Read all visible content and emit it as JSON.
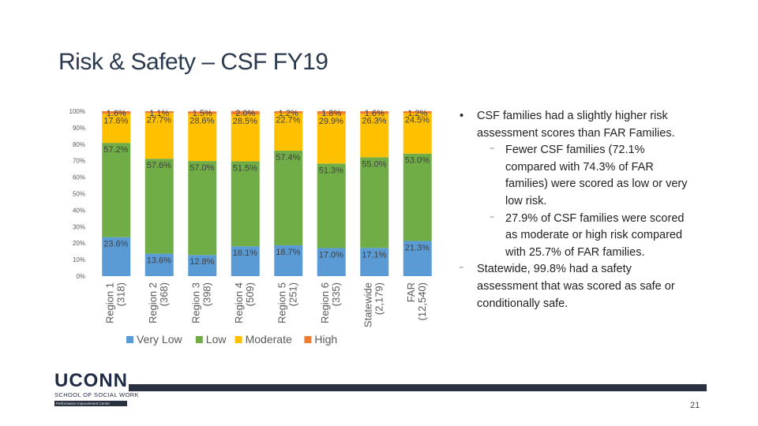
{
  "slide": {
    "title": "Risk & Safety – CSF FY19",
    "page_number": "21"
  },
  "logo": {
    "name": "UCONN",
    "subtitle": "SCHOOL OF SOCIAL WORK",
    "tagline": "Performance Improvement Center"
  },
  "bullets": [
    {
      "level": 1,
      "marker": "•",
      "text": "CSF families had a slightly higher risk assessment scores than FAR Families."
    },
    {
      "level": 2,
      "marker": "⁻",
      "text": "Fewer CSF families (72.1% compared with 74.3% of FAR families) were scored as low or very low risk."
    },
    {
      "level": 2,
      "marker": "⁻",
      "text": "27.9% of CSF families were scored as moderate or high risk compared with 25.7% of FAR families."
    },
    {
      "level": 1,
      "marker": "⁻",
      "text": "Statewide, 99.8% had a safety assessment that was scored as safe or conditionally safe."
    }
  ],
  "chart_data": {
    "type": "bar",
    "stacked": true,
    "percent": true,
    "categories": [
      "Region 1 (318)",
      "Region 2 (368)",
      "Region 3 (398)",
      "Region 4 (509)",
      "Region 5 (251)",
      "Region 6 (335)",
      "Statewide (2,179)",
      "FAR (12,540)"
    ],
    "category_lines": [
      [
        "Region 1",
        "(318)"
      ],
      [
        "Region 2",
        "(368)"
      ],
      [
        "Region 3",
        "(398)"
      ],
      [
        "Region 4",
        "(509)"
      ],
      [
        "Region 5",
        "(251)"
      ],
      [
        "Region 6",
        "(335)"
      ],
      [
        "Statewide",
        "(2,179)"
      ],
      [
        "FAR",
        "(12,540)"
      ]
    ],
    "series": [
      {
        "name": "Very Low",
        "color": "#5b9bd5",
        "values": [
          23.6,
          13.6,
          12.8,
          18.1,
          18.7,
          17.0,
          17.1,
          21.3
        ],
        "labels": [
          "23.6%",
          "13.6%",
          "12.8%",
          "18.1%",
          "18.7%",
          "17.0%",
          "17.1%",
          "21.3%"
        ]
      },
      {
        "name": "Low",
        "color": "#70ad47",
        "values": [
          57.2,
          57.6,
          57.0,
          51.5,
          57.4,
          51.3,
          55.0,
          53.0
        ],
        "labels": [
          "57.2%",
          "57.6%",
          "57.0%",
          "51.5%",
          "57.4%",
          "51.3%",
          "55.0%",
          "53.0%"
        ]
      },
      {
        "name": "Moderate",
        "color": "#ffc000",
        "values": [
          17.6,
          27.7,
          28.6,
          28.5,
          22.7,
          29.9,
          26.3,
          24.5
        ],
        "labels": [
          "17.6%",
          "27.7%",
          "28.6%",
          "28.5%",
          "22.7%",
          "29.9%",
          "26.3%",
          "24.5%"
        ]
      },
      {
        "name": "High",
        "color": "#ed7d31",
        "values": [
          1.6,
          1.1,
          1.5,
          2.0,
          1.2,
          1.8,
          1.6,
          1.2
        ],
        "labels": [
          "1.6%",
          "1.1%",
          "1.5%",
          "2.0%",
          "1.2%",
          "1.8%",
          "1.6%",
          "1.2%"
        ]
      }
    ],
    "y_ticks": [
      "0%",
      "10%",
      "20%",
      "30%",
      "40%",
      "50%",
      "60%",
      "70%",
      "80%",
      "90%",
      "100%"
    ],
    "ylim": [
      0,
      100
    ],
    "grid": false,
    "legend_position": "bottom"
  }
}
